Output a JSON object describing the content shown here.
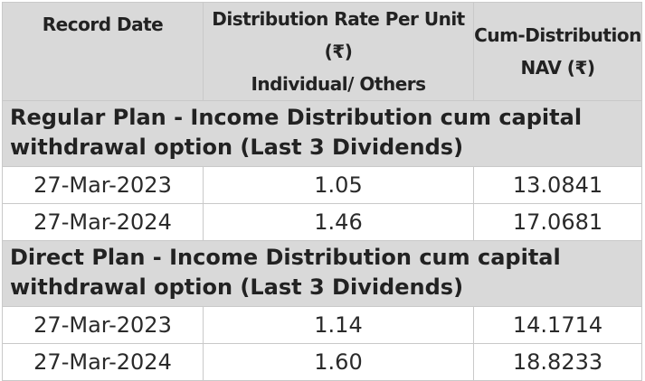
{
  "table": {
    "headers": {
      "record_date": "Record Date",
      "rate_line1": "Distribution Rate Per Unit  (₹)",
      "rate_line2": "Individual/ Others",
      "nav_line1": "Cum-Distribution",
      "nav_line2": "NAV (₹)"
    },
    "sections": [
      {
        "title": "Regular Plan - Income Distribution cum capital withdrawal option (Last 3 Dividends)",
        "rows": [
          {
            "record_date": "27-Mar-2023",
            "rate": "1.05",
            "nav": "13.0841"
          },
          {
            "record_date": "27-Mar-2024",
            "rate": "1.46",
            "nav": "17.0681"
          }
        ]
      },
      {
        "title": "Direct Plan - Income Distribution cum capital withdrawal option (Last 3 Dividends)",
        "rows": [
          {
            "record_date": "27-Mar-2023",
            "rate": "1.14",
            "nav": "14.1714"
          },
          {
            "record_date": "27-Mar-2024",
            "rate": "1.60",
            "nav": "18.8233"
          }
        ]
      }
    ]
  }
}
